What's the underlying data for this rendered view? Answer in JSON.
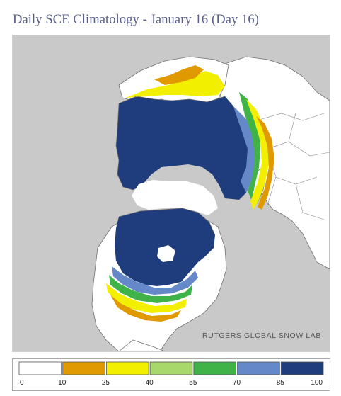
{
  "title": "Daily SCE Climatology - January 16 (Day 16)",
  "credit": "RUTGERS GLOBAL SNOW LAB",
  "colors": {
    "ocean": "#c9c9c9",
    "land": "#ffffff",
    "border": "#6f6f6f"
  },
  "legend": {
    "bins": [
      {
        "from": 0,
        "to": 10,
        "color": "#ffffff"
      },
      {
        "from": 10,
        "to": 25,
        "color": "#e09a00"
      },
      {
        "from": 25,
        "to": 40,
        "color": "#f2ef00"
      },
      {
        "from": 40,
        "to": 55,
        "color": "#a8d86a"
      },
      {
        "from": 55,
        "to": 70,
        "color": "#3fb347"
      },
      {
        "from": 70,
        "to": 85,
        "color": "#6488c8"
      },
      {
        "from": 85,
        "to": 100,
        "color": "#1f3c7c"
      }
    ],
    "labels": [
      "0",
      "10",
      "25",
      "40",
      "55",
      "70",
      "85",
      "100"
    ]
  }
}
